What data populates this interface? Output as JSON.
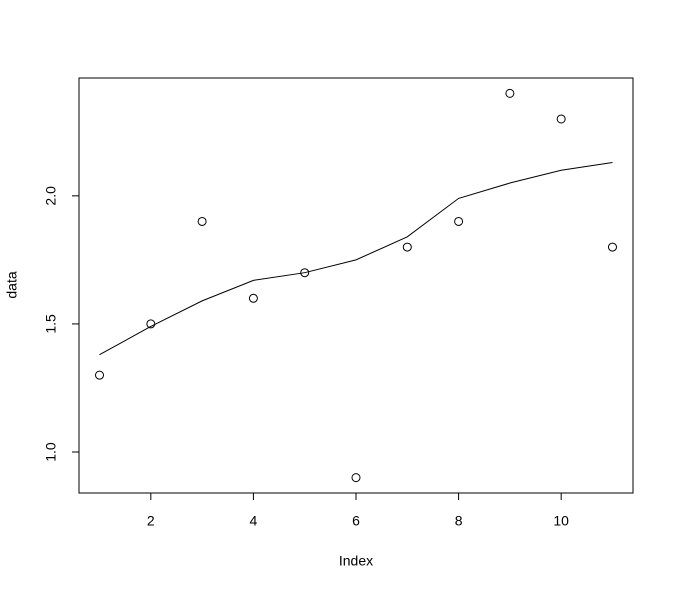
{
  "chart_data": {
    "type": "scatter",
    "x_label": "Index",
    "y_label": "data",
    "x": [
      1,
      2,
      3,
      4,
      5,
      6,
      7,
      8,
      9,
      10,
      11
    ],
    "series": [
      {
        "mark": "points",
        "color": "#000000",
        "values": [
          1.3,
          1.5,
          1.9,
          1.6,
          1.7,
          0.9,
          1.8,
          1.9,
          2.4,
          2.3,
          1.8
        ]
      },
      {
        "mark": "line",
        "color": "#000000",
        "values": [
          1.38,
          1.49,
          1.59,
          1.67,
          1.7,
          1.75,
          1.84,
          1.99,
          2.05,
          2.1,
          2.13
        ]
      }
    ],
    "xlim": [
      0.6,
      11.4
    ],
    "ylim": [
      0.84,
      2.46
    ],
    "xticks": [
      2,
      4,
      6,
      8,
      10
    ],
    "yticks": [
      {
        "value": 1,
        "label": "1.0"
      },
      {
        "value": 1.5,
        "label": "1.5"
      },
      {
        "value": 2,
        "label": "2.0"
      }
    ]
  }
}
